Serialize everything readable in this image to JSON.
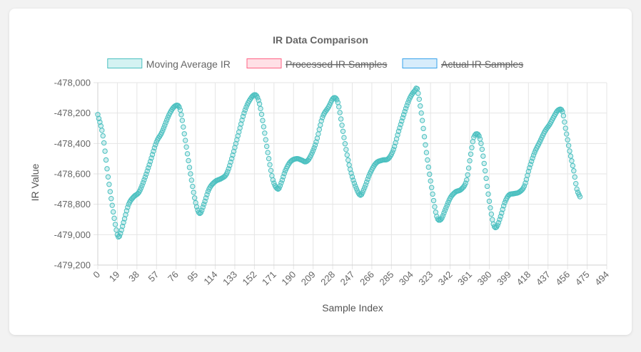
{
  "chart_data": {
    "type": "scatter",
    "title": "IR Data Comparison",
    "xlabel": "Sample Index",
    "ylabel": "IR Value",
    "xlim": [
      0,
      494
    ],
    "ylim": [
      -479200,
      -478000
    ],
    "x_ticks": [
      "0",
      "19",
      "38",
      "57",
      "76",
      "95",
      "114",
      "133",
      "152",
      "171",
      "190",
      "209",
      "228",
      "247",
      "266",
      "285",
      "304",
      "323",
      "342",
      "361",
      "380",
      "399",
      "418",
      "437",
      "456",
      "475",
      "494"
    ],
    "y_ticks": [
      "-478,000",
      "-478,200",
      "-478,400",
      "-478,600",
      "-478,800",
      "-479,000",
      "-479,200"
    ],
    "grid": true,
    "legend_position": "top",
    "legend": [
      {
        "label": "Moving Average IR",
        "hidden": false,
        "stroke": "#4bc0c0",
        "fill": "#d4f2f2"
      },
      {
        "label": "Processed IR Samples",
        "hidden": true,
        "stroke": "#ff6384",
        "fill": "#ffe0e6"
      },
      {
        "label": "Actual IR Samples",
        "hidden": true,
        "stroke": "#36a2eb",
        "fill": "#d7ecfb"
      }
    ],
    "series": [
      {
        "name": "Moving Average IR",
        "color": "#4bc0c0",
        "keypoints": [
          [
            0,
            -478210
          ],
          [
            5,
            -478350
          ],
          [
            10,
            -478620
          ],
          [
            15,
            -478850
          ],
          [
            19,
            -479000
          ],
          [
            21,
            -479010
          ],
          [
            25,
            -478920
          ],
          [
            30,
            -478800
          ],
          [
            35,
            -478750
          ],
          [
            40,
            -478720
          ],
          [
            45,
            -478640
          ],
          [
            50,
            -478540
          ],
          [
            57,
            -478390
          ],
          [
            62,
            -478330
          ],
          [
            70,
            -478200
          ],
          [
            76,
            -478150
          ],
          [
            80,
            -478180
          ],
          [
            85,
            -478380
          ],
          [
            90,
            -478600
          ],
          [
            95,
            -478790
          ],
          [
            99,
            -478860
          ],
          [
            103,
            -478800
          ],
          [
            108,
            -478700
          ],
          [
            114,
            -478650
          ],
          [
            120,
            -478630
          ],
          [
            125,
            -478600
          ],
          [
            130,
            -478500
          ],
          [
            136,
            -478350
          ],
          [
            142,
            -478200
          ],
          [
            147,
            -478120
          ],
          [
            153,
            -478080
          ],
          [
            157,
            -478140
          ],
          [
            161,
            -478290
          ],
          [
            165,
            -478460
          ],
          [
            170,
            -478640
          ],
          [
            175,
            -478700
          ],
          [
            178,
            -478660
          ],
          [
            182,
            -478580
          ],
          [
            187,
            -478520
          ],
          [
            193,
            -478500
          ],
          [
            198,
            -478510
          ],
          [
            202,
            -478520
          ],
          [
            206,
            -478490
          ],
          [
            212,
            -478390
          ],
          [
            218,
            -478230
          ],
          [
            224,
            -478160
          ],
          [
            229,
            -478100
          ],
          [
            233,
            -478130
          ],
          [
            237,
            -478280
          ],
          [
            241,
            -478440
          ],
          [
            245,
            -478570
          ],
          [
            250,
            -478680
          ],
          [
            255,
            -478740
          ],
          [
            259,
            -478690
          ],
          [
            264,
            -478600
          ],
          [
            270,
            -478530
          ],
          [
            276,
            -478510
          ],
          [
            282,
            -478500
          ],
          [
            287,
            -478440
          ],
          [
            292,
            -478320
          ],
          [
            298,
            -478190
          ],
          [
            303,
            -478100
          ],
          [
            308,
            -478050
          ],
          [
            310,
            -478040
          ],
          [
            314,
            -478200
          ],
          [
            319,
            -478460
          ],
          [
            324,
            -478690
          ],
          [
            329,
            -478880
          ],
          [
            333,
            -478900
          ],
          [
            337,
            -478840
          ],
          [
            342,
            -478760
          ],
          [
            347,
            -478720
          ],
          [
            353,
            -478700
          ],
          [
            358,
            -478640
          ],
          [
            362,
            -478470
          ],
          [
            365,
            -478360
          ],
          [
            369,
            -478340
          ],
          [
            372,
            -478400
          ],
          [
            376,
            -478580
          ],
          [
            380,
            -478780
          ],
          [
            384,
            -478930
          ],
          [
            387,
            -478950
          ],
          [
            391,
            -478880
          ],
          [
            395,
            -478790
          ],
          [
            399,
            -478740
          ],
          [
            404,
            -478730
          ],
          [
            409,
            -478720
          ],
          [
            414,
            -478680
          ],
          [
            419,
            -478560
          ],
          [
            424,
            -478460
          ],
          [
            429,
            -478390
          ],
          [
            434,
            -478320
          ],
          [
            439,
            -478270
          ],
          [
            443,
            -478220
          ],
          [
            447,
            -478180
          ],
          [
            451,
            -478190
          ],
          [
            454,
            -478300
          ],
          [
            458,
            -478450
          ],
          [
            462,
            -478580
          ],
          [
            465,
            -478700
          ],
          [
            468,
            -478750
          ]
        ]
      }
    ]
  }
}
